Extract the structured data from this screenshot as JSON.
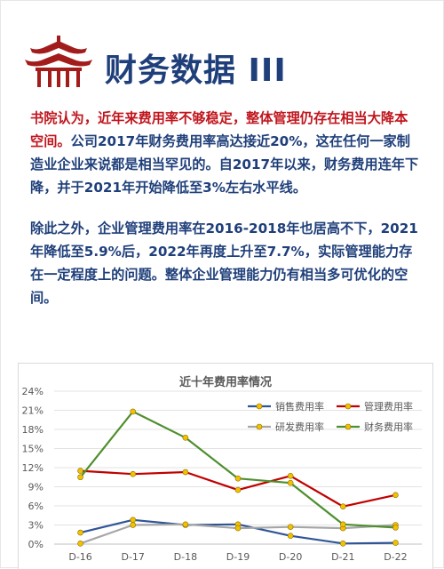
{
  "header": {
    "title": "财务数据 III",
    "logo_name": "pavilion-logo"
  },
  "body": {
    "para1_lead": "书院认为，近年来费用率不够稳定，整体管理仍存在相当大降本空间。",
    "para1_rest": "公司2017年财务费用率高达接近20%，这在任何一家制造业企业来说都是相当罕见的。自2017年以来，财务费用连年下降，并于2021年开始降低至3%左右水平线。",
    "para2": "除此之外，企业管理费用率在2016-2018年也居高不下，2021年降低至5.9%后，2022年再度上升至7.7%，实际管理能力存在一定程度上的问题。整体企业管理能力仍有相当多可优化的空间。"
  },
  "colors": {
    "title": "#1f3f7a",
    "lead": "#c0161e",
    "logo": "#a31c1c"
  },
  "chart_data": {
    "type": "line",
    "title": "近十年费用率情况",
    "categories": [
      "D-16",
      "D-17",
      "D-18",
      "D-19",
      "D-20",
      "D-21",
      "D-22"
    ],
    "ylim": [
      0,
      24
    ],
    "yticks": [
      "0%",
      "3%",
      "6%",
      "9%",
      "12%",
      "15%",
      "18%",
      "21%",
      "24%"
    ],
    "grid": true,
    "legend_position": "top-right",
    "marker_color": "#f2c200",
    "series": [
      {
        "name": "销售费用率",
        "color": "#2f5597",
        "values": [
          1.8,
          3.8,
          3.0,
          3.1,
          1.3,
          0.1,
          0.2
        ]
      },
      {
        "name": "管理费用率",
        "color": "#c00000",
        "values": [
          11.5,
          11.0,
          11.3,
          8.5,
          10.7,
          5.9,
          7.7
        ]
      },
      {
        "name": "研发费用率",
        "color": "#a6a6a6",
        "values": [
          0.1,
          3.0,
          3.1,
          2.5,
          2.7,
          2.5,
          3.0
        ]
      },
      {
        "name": "财务费用率",
        "color": "#4e8f2e",
        "values": [
          10.5,
          20.8,
          16.7,
          10.3,
          9.6,
          3.1,
          2.6
        ]
      }
    ]
  }
}
